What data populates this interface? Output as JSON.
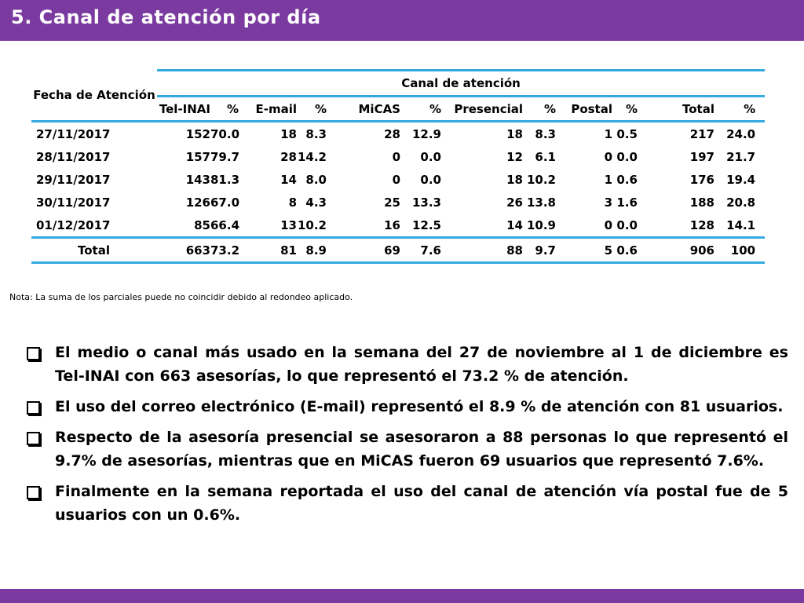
{
  "header": {
    "title": "5. Canal de atención por día",
    "bar_color": "#7a3a9f"
  },
  "table": {
    "corner_header": "Fecha de Atención",
    "group_header": "Canal de atención",
    "columns": [
      "Tel-INAI",
      "%",
      "E-mail",
      "%",
      "MiCAS",
      "%",
      "Presencial",
      "%",
      "Postal",
      "%",
      "Total",
      "%"
    ],
    "rows": [
      [
        "27/11/2017",
        "152",
        "70.0",
        "18",
        "8.3",
        "28",
        "12.9",
        "18",
        "8.3",
        "1",
        "0.5",
        "217",
        "24.0"
      ],
      [
        "28/11/2017",
        "157",
        "79.7",
        "28",
        "14.2",
        "0",
        "0.0",
        "12",
        "6.1",
        "0",
        "0.0",
        "197",
        "21.7"
      ],
      [
        "29/11/2017",
        "143",
        "81.3",
        "14",
        "8.0",
        "0",
        "0.0",
        "18",
        "10.2",
        "1",
        "0.6",
        "176",
        "19.4"
      ],
      [
        "30/11/2017",
        "126",
        "67.0",
        "8",
        "4.3",
        "25",
        "13.3",
        "26",
        "13.8",
        "3",
        "1.6",
        "188",
        "20.8"
      ],
      [
        "01/12/2017",
        "85",
        "66.4",
        "13",
        "10.2",
        "16",
        "12.5",
        "14",
        "10.9",
        "0",
        "0.0",
        "128",
        "14.1"
      ]
    ],
    "total": [
      "Total",
      "663",
      "73.2",
      "81",
      "8.9",
      "69",
      "7.6",
      "88",
      "9.7",
      "5",
      "0.6",
      "906",
      "100"
    ],
    "border_color": "#33aae0"
  },
  "note": "Nota: La suma de los parciales puede no coincidir debido al redondeo aplicado.",
  "bullets": [
    "El medio o canal más usado en la semana del 27 de noviembre al 1 de diciembre es Tel-INAI con 663 asesorías, lo que representó el 73.2 % de atención.",
    "El uso del correo electrónico (E-mail) representó el 8.9 % de atención con 81 usuarios.",
    "Respecto de la asesoría presencial se asesoraron a 88 personas lo que representó el 9.7% de asesorías, mientras que en MiCAS fueron 69 usuarios que representó 7.6%.",
    "Finalmente en la semana reportada el uso del canal de atención vía postal fue de 5 usuarios con un 0.6%."
  ]
}
